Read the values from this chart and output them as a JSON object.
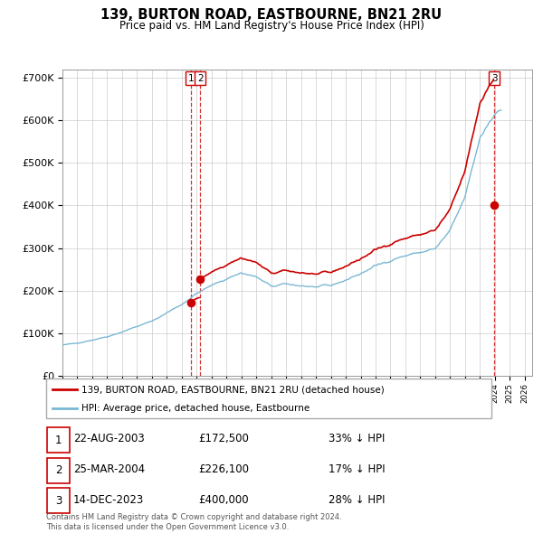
{
  "title": "139, BURTON ROAD, EASTBOURNE, BN21 2RU",
  "subtitle": "Price paid vs. HM Land Registry's House Price Index (HPI)",
  "ylim": [
    0,
    720000
  ],
  "yticks": [
    0,
    100000,
    200000,
    300000,
    400000,
    500000,
    600000,
    700000
  ],
  "hpi_color": "#7bb8d4",
  "sale_color": "#cc0000",
  "vline_color": "#cc0000",
  "legend_sale": "139, BURTON ROAD, EASTBOURNE, BN21 2RU (detached house)",
  "legend_hpi": "HPI: Average price, detached house, Eastbourne",
  "transactions": [
    {
      "label": "1",
      "date": "22-AUG-2003",
      "price": "£172,500",
      "pct": "33% ↓ HPI",
      "x_year": 2003.64,
      "value": 172500
    },
    {
      "label": "2",
      "date": "25-MAR-2004",
      "price": "£226,100",
      "pct": "17% ↓ HPI",
      "x_year": 2004.23,
      "value": 226100
    },
    {
      "label": "3",
      "date": "14-DEC-2023",
      "price": "£400,000",
      "pct": "28% ↓ HPI",
      "x_year": 2023.95,
      "value": 400000
    }
  ],
  "footnote": "Contains HM Land Registry data © Crown copyright and database right 2024.\nThis data is licensed under the Open Government Licence v3.0.",
  "xmin": 1995,
  "xmax": 2026.5
}
